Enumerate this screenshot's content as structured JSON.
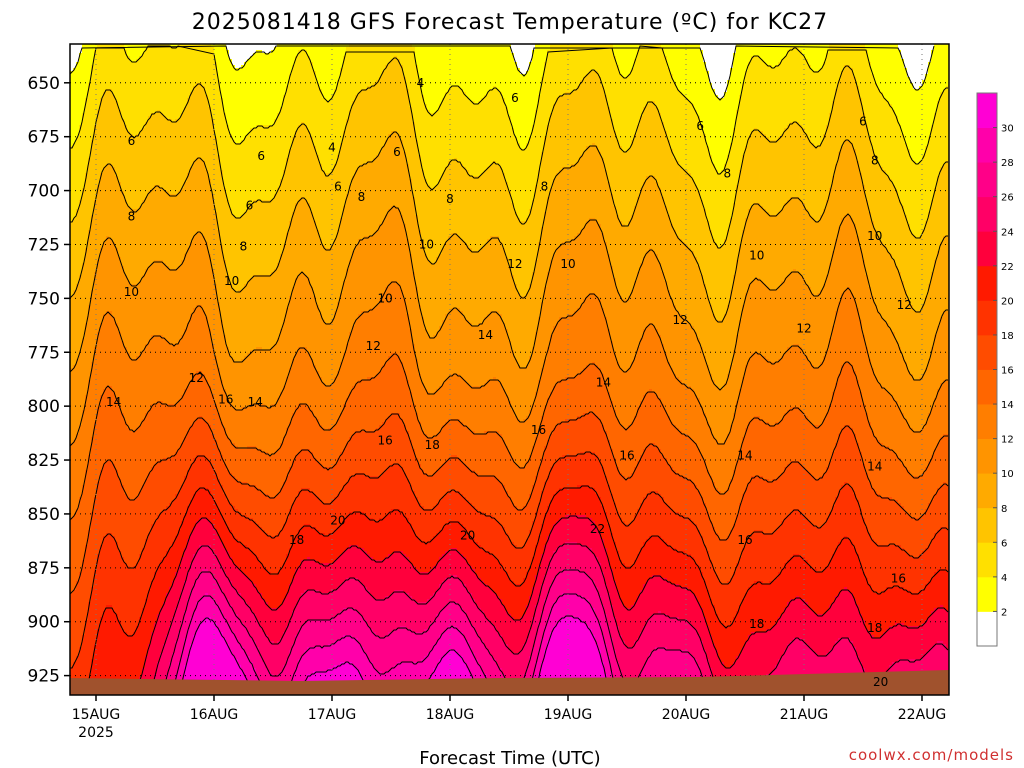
{
  "chart_data": {
    "type": "heatmap",
    "title": "2025081418 GFS Forecast Temperature (ºC) for KC27",
    "xlabel": "Forecast Time (UTC)",
    "ylabel": "",
    "x_ticks": [
      {
        "label": "15AUG",
        "sub": "2025",
        "day": 0
      },
      {
        "label": "16AUG",
        "sub": "",
        "day": 1
      },
      {
        "label": "17AUG",
        "sub": "",
        "day": 2
      },
      {
        "label": "18AUG",
        "sub": "",
        "day": 3
      },
      {
        "label": "19AUG",
        "sub": "",
        "day": 4
      },
      {
        "label": "20AUG",
        "sub": "",
        "day": 5
      },
      {
        "label": "21AUG",
        "sub": "",
        "day": 6
      },
      {
        "label": "22AUG",
        "sub": "",
        "day": 7
      }
    ],
    "y_ticks": [
      650,
      675,
      700,
      725,
      750,
      775,
      800,
      825,
      850,
      875,
      900,
      925
    ],
    "ylim": [
      934,
      632
    ],
    "y_inverted": true,
    "grid": true,
    "colorbar": {
      "levels": [
        0,
        2,
        4,
        6,
        8,
        10,
        12,
        14,
        16,
        18,
        20,
        22,
        24,
        26,
        28,
        30,
        32
      ],
      "tick_labels": [
        "2",
        "4",
        "6",
        "8",
        "10",
        "12",
        "14",
        "16",
        "18",
        "20",
        "22",
        "24",
        "26",
        "28",
        "30"
      ],
      "colors": [
        "#ffffff",
        "#ffff00",
        "#ffe000",
        "#ffc400",
        "#ffaa00",
        "#ff9400",
        "#ff7e00",
        "#ff6600",
        "#ff4c00",
        "#ff3300",
        "#ff1a00",
        "#ff003c",
        "#ff0066",
        "#ff0088",
        "#ff00aa",
        "#ff00d4"
      ]
    },
    "contour_labels": [
      {
        "text": "4",
        "day": 2.0,
        "p": 680
      },
      {
        "text": "4",
        "day": 2.75,
        "p": 650
      },
      {
        "text": "6",
        "day": 0.3,
        "p": 677
      },
      {
        "text": "6",
        "day": 1.4,
        "p": 684
      },
      {
        "text": "6",
        "day": 1.3,
        "p": 707
      },
      {
        "text": "6",
        "day": 2.05,
        "p": 698
      },
      {
        "text": "6",
        "day": 2.55,
        "p": 682
      },
      {
        "text": "6",
        "day": 3.55,
        "p": 657
      },
      {
        "text": "6",
        "day": 5.12,
        "p": 670
      },
      {
        "text": "6",
        "day": 6.5,
        "p": 668
      },
      {
        "text": "8",
        "day": 0.3,
        "p": 712
      },
      {
        "text": "8",
        "day": 1.25,
        "p": 726
      },
      {
        "text": "8",
        "day": 2.25,
        "p": 703
      },
      {
        "text": "8",
        "day": 3.0,
        "p": 704
      },
      {
        "text": "8",
        "day": 3.8,
        "p": 698
      },
      {
        "text": "8",
        "day": 5.35,
        "p": 692
      },
      {
        "text": "8",
        "day": 6.6,
        "p": 686
      },
      {
        "text": "10",
        "day": 0.3,
        "p": 747
      },
      {
        "text": "10",
        "day": 1.15,
        "p": 742
      },
      {
        "text": "10",
        "day": 2.45,
        "p": 750
      },
      {
        "text": "10",
        "day": 2.8,
        "p": 725
      },
      {
        "text": "10",
        "day": 4.0,
        "p": 734
      },
      {
        "text": "10",
        "day": 5.6,
        "p": 730
      },
      {
        "text": "10",
        "day": 6.6,
        "p": 721
      },
      {
        "text": "12",
        "day": 0.85,
        "p": 787
      },
      {
        "text": "12",
        "day": 2.35,
        "p": 772
      },
      {
        "text": "12",
        "day": 3.55,
        "p": 734
      },
      {
        "text": "12",
        "day": 4.95,
        "p": 760
      },
      {
        "text": "12",
        "day": 6.0,
        "p": 764
      },
      {
        "text": "12",
        "day": 6.85,
        "p": 753
      },
      {
        "text": "14",
        "day": 0.15,
        "p": 798
      },
      {
        "text": "14",
        "day": 1.35,
        "p": 798
      },
      {
        "text": "14",
        "day": 3.3,
        "p": 767
      },
      {
        "text": "14",
        "day": 4.3,
        "p": 789
      },
      {
        "text": "14",
        "day": 5.5,
        "p": 823
      },
      {
        "text": "14",
        "day": 6.6,
        "p": 828
      },
      {
        "text": "16",
        "day": 1.1,
        "p": 797
      },
      {
        "text": "16",
        "day": 2.45,
        "p": 816
      },
      {
        "text": "16",
        "day": 3.75,
        "p": 811
      },
      {
        "text": "16",
        "day": 4.5,
        "p": 823
      },
      {
        "text": "16",
        "day": 5.5,
        "p": 862
      },
      {
        "text": "16",
        "day": 6.8,
        "p": 880
      },
      {
        "text": "18",
        "day": 1.7,
        "p": 862
      },
      {
        "text": "18",
        "day": 2.85,
        "p": 818
      },
      {
        "text": "18",
        "day": 5.6,
        "p": 901
      },
      {
        "text": "18",
        "day": 6.6,
        "p": 903
      },
      {
        "text": "20",
        "day": 2.05,
        "p": 853
      },
      {
        "text": "20",
        "day": 3.15,
        "p": 860
      },
      {
        "text": "20",
        "day": 6.65,
        "p": 928
      },
      {
        "text": "22",
        "day": 4.25,
        "p": 857
      }
    ]
  },
  "footer": {
    "credit": "coolwx.com/models"
  }
}
